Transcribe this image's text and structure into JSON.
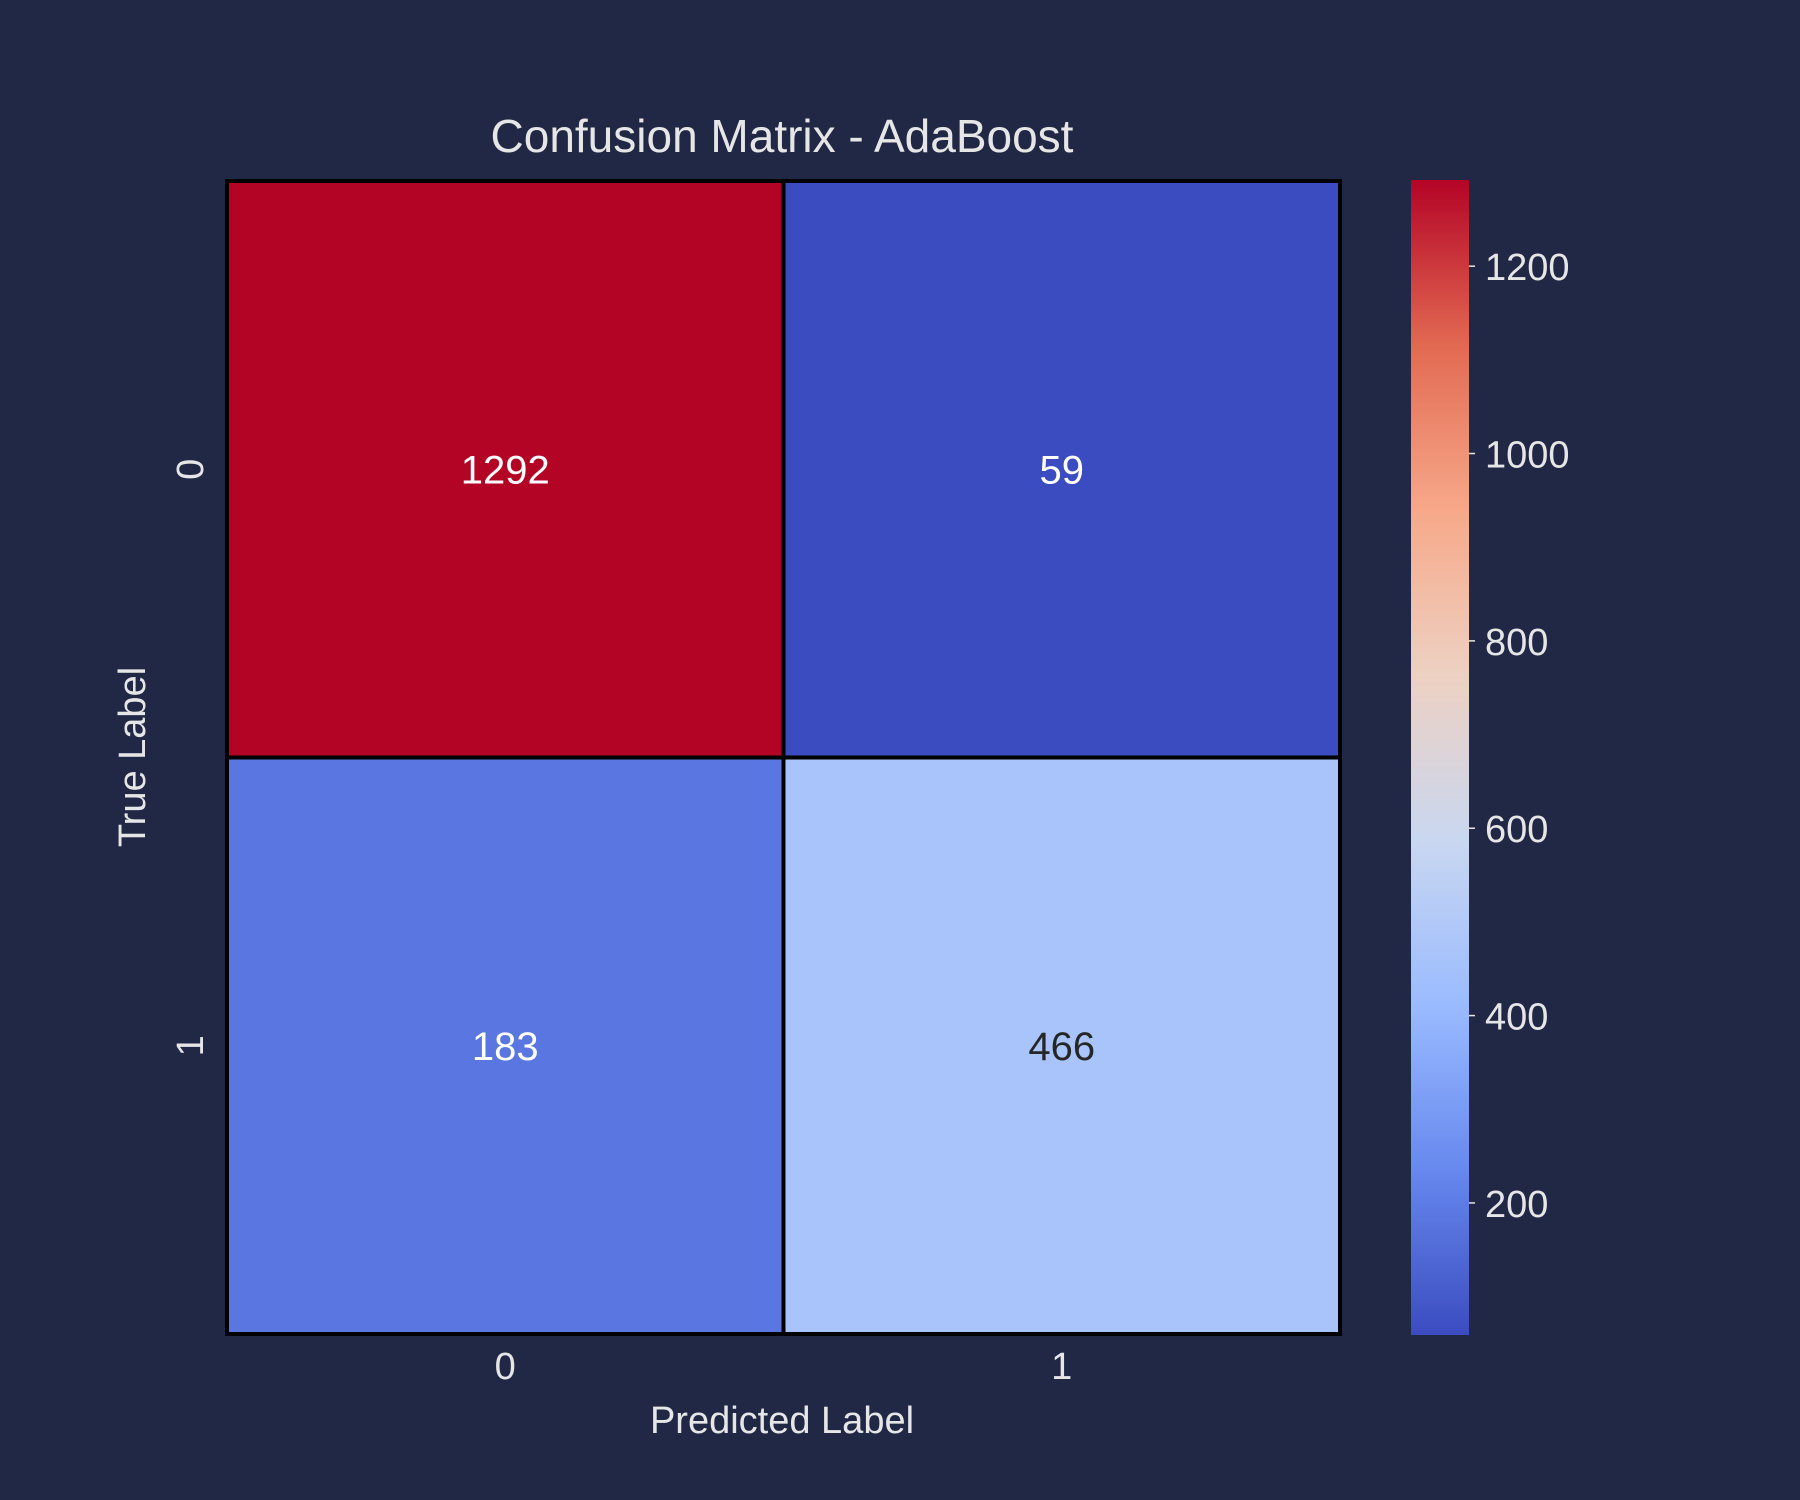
{
  "chart_data": {
    "type": "heatmap",
    "title": "Confusion Matrix - AdaBoost",
    "xlabel": "Predicted Label",
    "ylabel": "True Label",
    "x_categories": [
      "0",
      "1"
    ],
    "y_categories": [
      "0",
      "1"
    ],
    "matrix": [
      [
        1292,
        59
      ],
      [
        183,
        466
      ]
    ],
    "colormap": "coolwarm",
    "colorbar": {
      "min": 59,
      "max": 1292,
      "ticks": [
        200,
        400,
        600,
        800,
        1000,
        1200
      ],
      "tick_labels": [
        "200",
        "400",
        "600",
        "800",
        "1000",
        "1200"
      ]
    },
    "colors": {
      "background": "#212846",
      "text": "#e6e6e6",
      "cell_text_light": "#ffffff",
      "cell_text_dark": "#262626",
      "cell_border": "#000000",
      "colormap_stops": [
        "#3b4cc0",
        "#6788ee",
        "#9abbff",
        "#c9d7f0",
        "#edd1c2",
        "#f7a889",
        "#e26952",
        "#b40426"
      ]
    }
  }
}
